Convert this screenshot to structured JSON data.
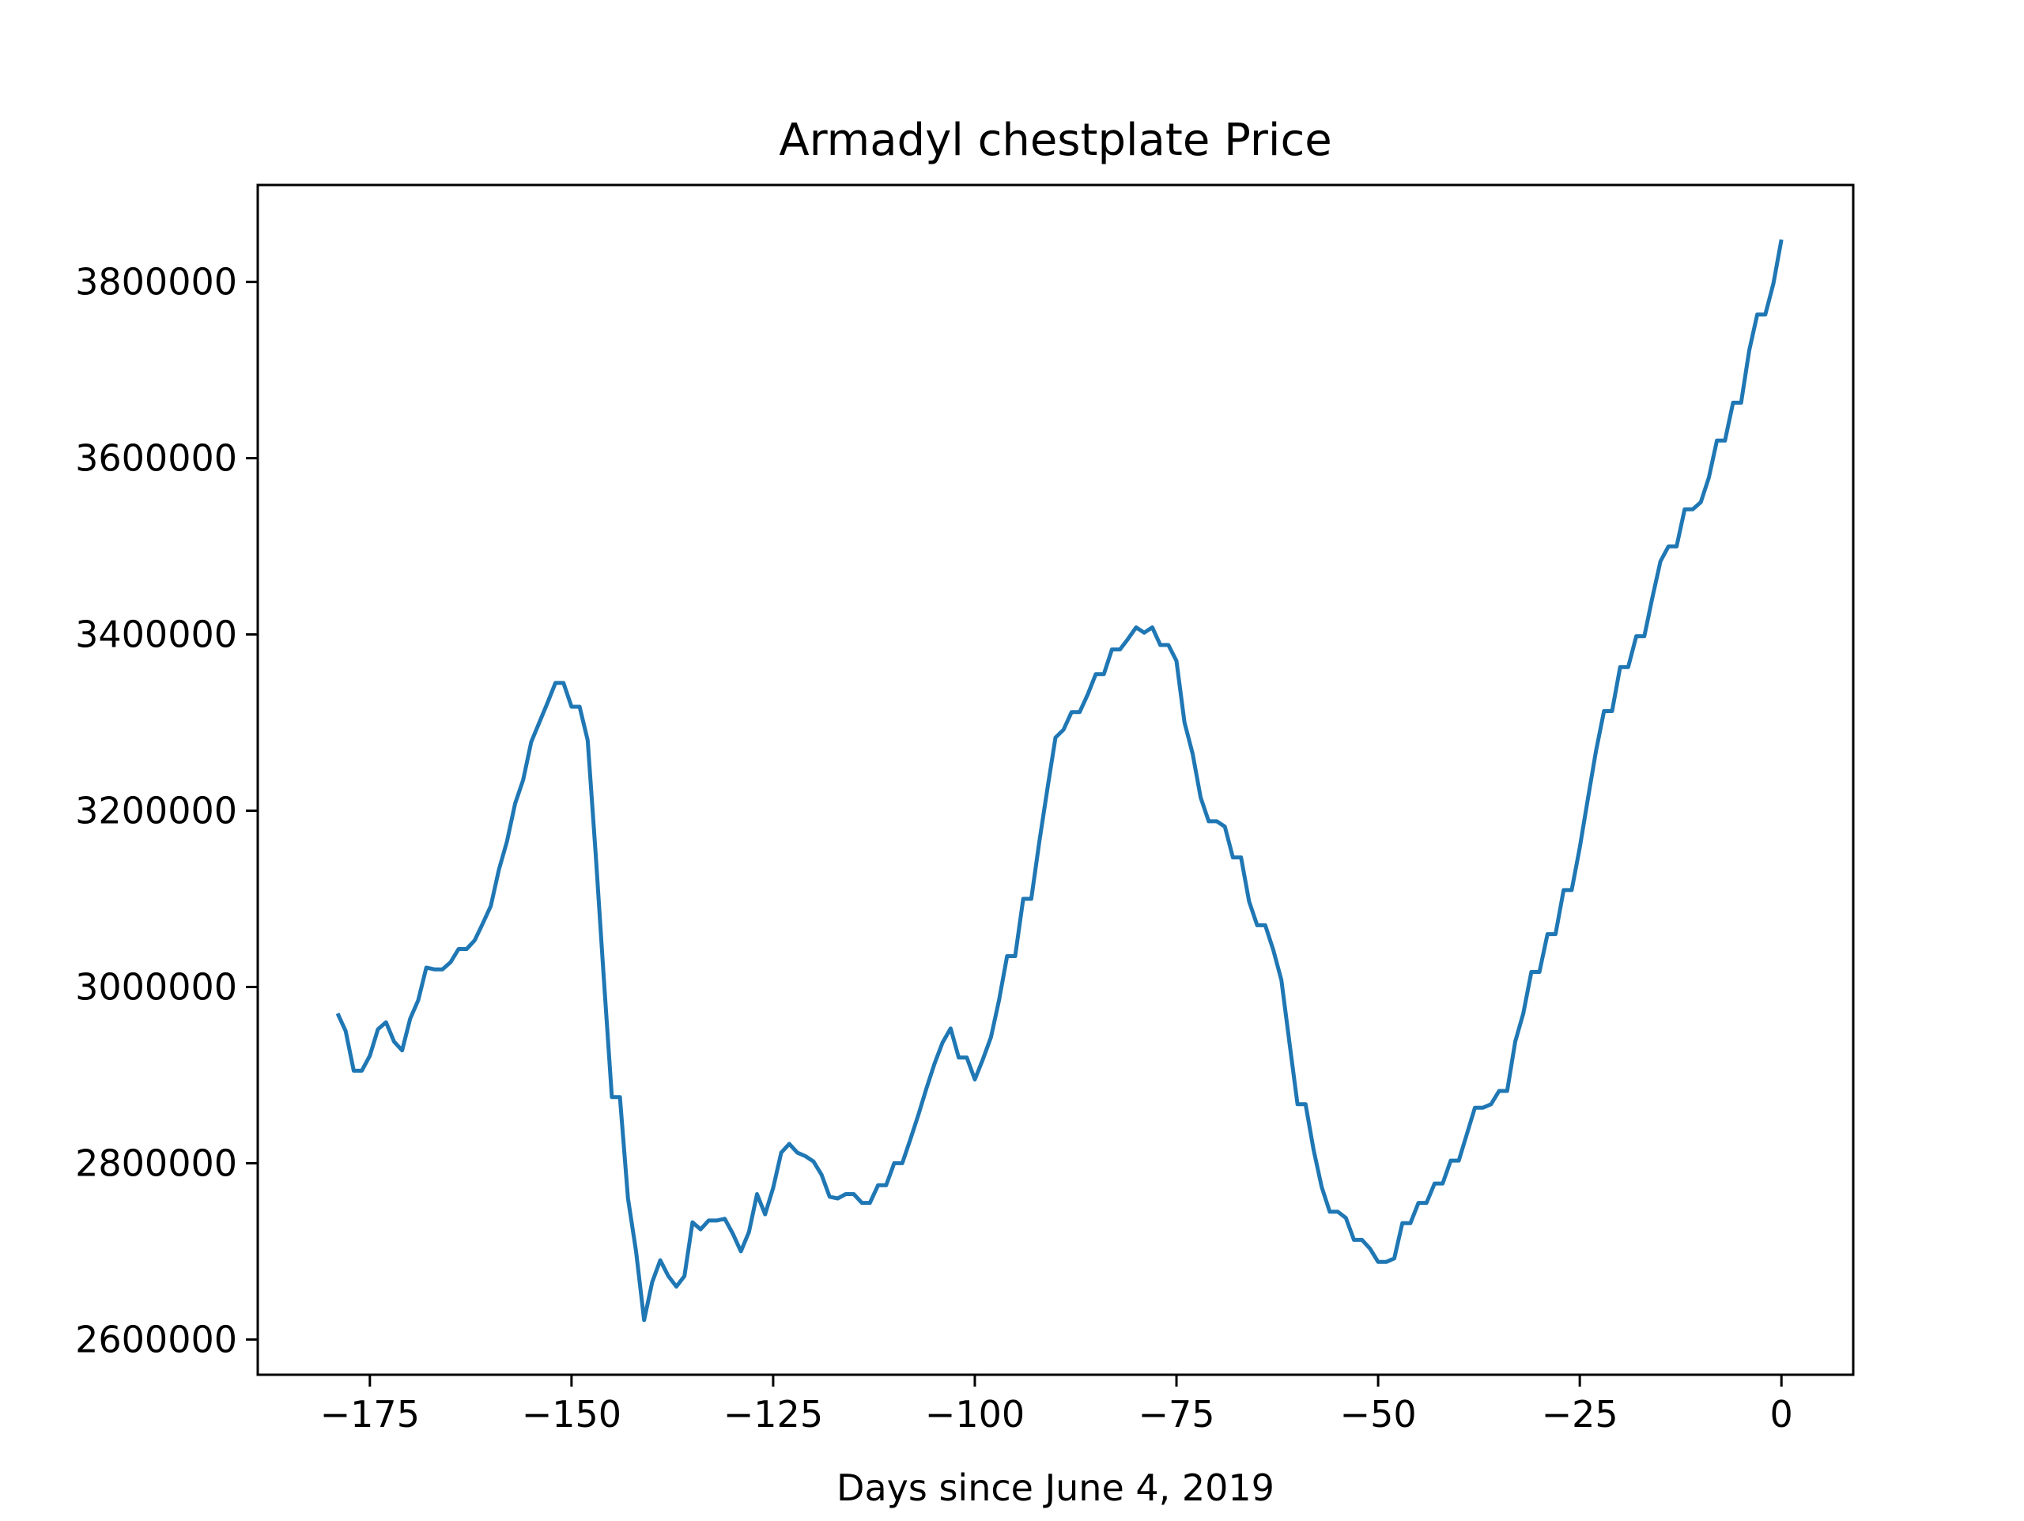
{
  "chart_data": {
    "type": "line",
    "title": "Armadyl chestplate Price",
    "xlabel": "Days since June 4, 2019",
    "ylabel": "",
    "xlim": [
      -188.9,
      8.9
    ],
    "ylim": [
      2560000,
      3910000
    ],
    "grid": false,
    "xticks": [
      -175,
      -150,
      -125,
      -100,
      -75,
      -50,
      -25,
      0
    ],
    "xtick_labels": [
      "−175",
      "−150",
      "−125",
      "−100",
      "−75",
      "−50",
      "−25",
      "0"
    ],
    "yticks": [
      2600000,
      2800000,
      3000000,
      3200000,
      3400000,
      3600000,
      3800000
    ],
    "ytick_labels": [
      "2600000",
      "2800000",
      "3000000",
      "3200000",
      "3400000",
      "3600000",
      "3800000"
    ],
    "line_color": "#1f77b4",
    "series": [
      {
        "name": "",
        "x": [
          -179,
          -178,
          -177,
          -176,
          -175,
          -174,
          -173,
          -172,
          -171,
          -170,
          -169,
          -168,
          -167,
          -166,
          -165,
          -164,
          -163,
          -162,
          -161,
          -160,
          -159,
          -158,
          -157,
          -156,
          -155,
          -154,
          -153,
          -152,
          -151,
          -150,
          -149,
          -148,
          -147,
          -146,
          -145,
          -144,
          -143,
          -142,
          -141,
          -140,
          -139,
          -138,
          -137,
          -136,
          -135,
          -134,
          -133,
          -132,
          -131,
          -130,
          -129,
          -128,
          -127,
          -126,
          -125,
          -124,
          -123,
          -122,
          -121,
          -120,
          -119,
          -118,
          -117,
          -116,
          -115,
          -114,
          -113,
          -112,
          -111,
          -110,
          -109,
          -108,
          -107,
          -106,
          -105,
          -104,
          -103,
          -102,
          -101,
          -100,
          -99,
          -98,
          -97,
          -96,
          -95,
          -94,
          -93,
          -92,
          -91,
          -90,
          -89,
          -88,
          -87,
          -86,
          -85,
          -84,
          -83,
          -82,
          -81,
          -80,
          -79,
          -78,
          -77,
          -76,
          -75,
          -74,
          -73,
          -72,
          -71,
          -70,
          -69,
          -68,
          -67,
          -66,
          -65,
          -64,
          -63,
          -62,
          -61,
          -60,
          -59,
          -58,
          -57,
          -56,
          -55,
          -54,
          -53,
          -52,
          -51,
          -50,
          -49,
          -48,
          -47,
          -46,
          -45,
          -44,
          -43,
          -42,
          -41,
          -40,
          -39,
          -38,
          -37,
          -36,
          -35,
          -34,
          -33,
          -32,
          -31,
          -30,
          -29,
          -28,
          -27,
          -26,
          -25,
          -24,
          -23,
          -22,
          -21,
          -20,
          -19,
          -18,
          -17,
          -16,
          -15,
          -14,
          -13,
          -12,
          -11,
          -10,
          -9,
          -8,
          -7,
          -6,
          -5,
          -4,
          -3,
          -2,
          -1,
          0
        ],
        "y": [
          2970000,
          2950000,
          2905000,
          2905000,
          2922000,
          2952000,
          2960000,
          2938000,
          2928000,
          2964000,
          2985000,
          3022000,
          3020000,
          3020000,
          3028000,
          3043000,
          3043000,
          3053000,
          3072000,
          3092000,
          3133000,
          3165000,
          3208000,
          3235000,
          3278000,
          3300000,
          3322000,
          3345000,
          3345000,
          3318000,
          3318000,
          3280000,
          3150000,
          3010000,
          2875000,
          2875000,
          2760000,
          2700000,
          2622000,
          2665000,
          2690000,
          2672000,
          2660000,
          2672000,
          2733000,
          2725000,
          2735000,
          2735000,
          2737000,
          2720000,
          2700000,
          2722000,
          2765000,
          2742000,
          2772000,
          2812000,
          2822000,
          2812000,
          2808000,
          2802000,
          2787000,
          2762000,
          2760000,
          2765000,
          2765000,
          2755000,
          2755000,
          2775000,
          2775000,
          2800000,
          2800000,
          2827000,
          2855000,
          2885000,
          2913000,
          2937000,
          2953000,
          2920000,
          2920000,
          2895000,
          2918000,
          2943000,
          2985000,
          3035000,
          3035000,
          3100000,
          3100000,
          3165000,
          3225000,
          3283000,
          3292000,
          3312000,
          3312000,
          3332000,
          3355000,
          3355000,
          3383000,
          3383000,
          3395000,
          3408000,
          3402000,
          3408000,
          3388000,
          3388000,
          3370000,
          3300000,
          3265000,
          3215000,
          3188000,
          3188000,
          3182000,
          3147000,
          3147000,
          3097000,
          3070000,
          3070000,
          3042000,
          3008000,
          2937000,
          2867000,
          2867000,
          2815000,
          2773000,
          2745000,
          2745000,
          2738000,
          2713000,
          2713000,
          2703000,
          2688000,
          2688000,
          2692000,
          2732000,
          2732000,
          2755000,
          2755000,
          2777000,
          2777000,
          2803000,
          2803000,
          2833000,
          2863000,
          2863000,
          2867000,
          2882000,
          2882000,
          2938000,
          2970000,
          3017000,
          3017000,
          3060000,
          3060000,
          3110000,
          3110000,
          3158000,
          3213000,
          3267000,
          3313000,
          3313000,
          3363000,
          3363000,
          3398000,
          3398000,
          3442000,
          3483000,
          3500000,
          3500000,
          3542000,
          3542000,
          3550000,
          3578000,
          3620000,
          3620000,
          3663000,
          3663000,
          3722000,
          3763000,
          3763000,
          3798000,
          3848000
        ]
      }
    ]
  }
}
